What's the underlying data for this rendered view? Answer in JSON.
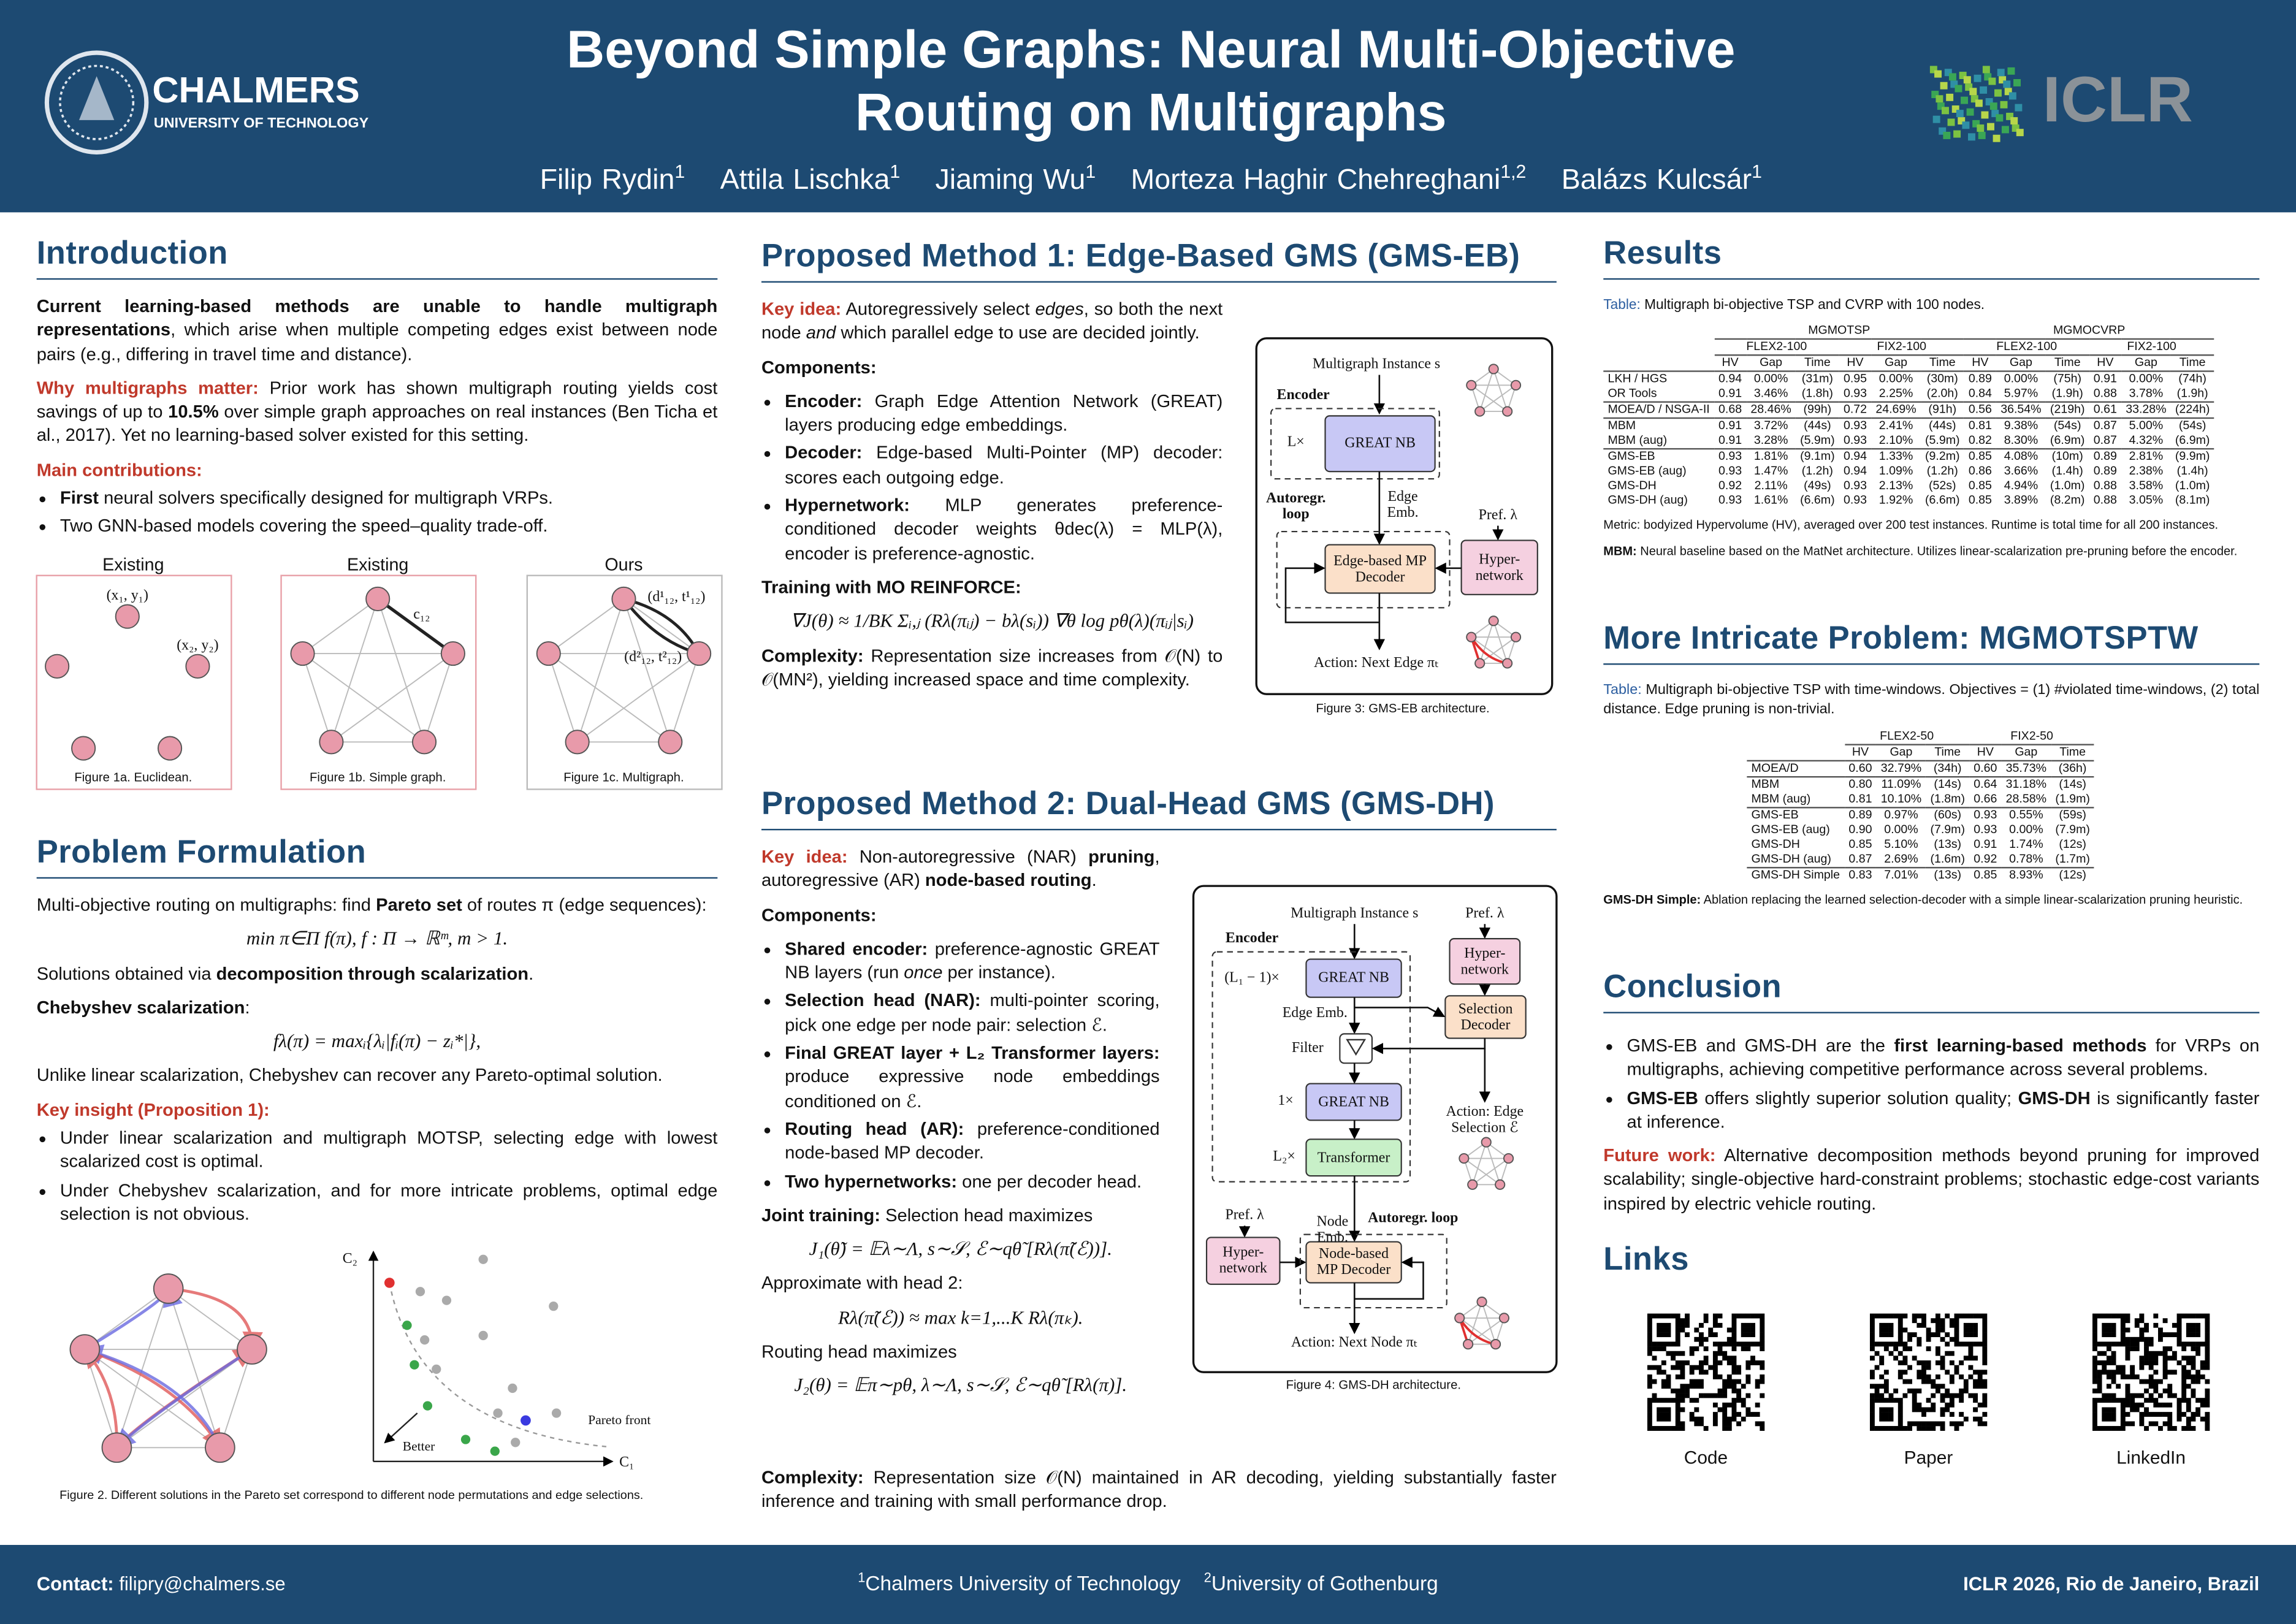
{
  "header": {
    "title_lines": [
      "Beyond Simple Graphs: Neural Multi-Objective",
      "Routing on Multigraphs"
    ],
    "authors": [
      {
        "name": "Filip Rydin",
        "aff": "1"
      },
      {
        "name": "Attila Lischka",
        "aff": "1"
      },
      {
        "name": "Jiaming Wu",
        "aff": "1"
      },
      {
        "name": "Morteza Haghir Chehreghani",
        "aff": "1,2"
      },
      {
        "name": "Balázs Kulcsár",
        "aff": "1"
      }
    ],
    "logo_left": "CHALMERS",
    "logo_left_sub": "UNIVERSITY OF TECHNOLOGY",
    "logo_right": "ICLR"
  },
  "intro": {
    "title": "Introduction",
    "blocks": [
      {
        "p": [
          {
            "b": "Current learning-based methods are unable to handle multigraph representations"
          },
          {
            "t": ", which arise when multiple competing edges exist between node pairs (e.g., differing in travel time and distance)."
          }
        ]
      },
      {
        "p": [
          {
            "r": "Why multigraphs matter:"
          },
          {
            "t": " Prior work has shown multigraph routing yields cost savings of up to "
          },
          {
            "b": "10.5%"
          },
          {
            "t": " over simple graph approaches on real instances (Ben Ticha et al., 2017). Yet no learning-based solver existed for this setting."
          }
        ]
      },
      {
        "h": [
          {
            "r": "Main contributions:"
          }
        ]
      },
      {
        "ul": [
          [
            {
              "b": "First"
            },
            {
              "t": " neural solvers specifically designed for multigraph VRPs."
            }
          ],
          [
            {
              "t": "Two GNN-based models covering the speed–quality trade-off."
            }
          ]
        ]
      }
    ],
    "figure1": [
      {
        "title": "Existing",
        "caption": "Figure 1a. Euclidean.",
        "labels": [
          "(x₁, y₁)",
          "(x₂, y₂)"
        ]
      },
      {
        "title": "Existing",
        "caption": "Figure 1b. Simple graph.",
        "labels": [
          "c₁₂"
        ]
      },
      {
        "title": "Ours",
        "caption": "Figure 1c. Multigraph.",
        "labels": [
          "(d¹₁₂, t¹₁₂)",
          "(d²₁₂, t²₁₂)"
        ]
      }
    ]
  },
  "problem": {
    "title": "Problem Formulation",
    "blocks": [
      {
        "p": [
          {
            "t": "Multi-objective routing on multigraphs: find "
          },
          {
            "b": "Pareto set"
          },
          {
            "t": " of routes π (edge sequences):"
          }
        ]
      },
      {
        "eq": "min π∈Π f(π),    f : Π → ℝᵐ,  m > 1."
      },
      {
        "p": [
          {
            "t": "Solutions obtained via "
          },
          {
            "b": "decomposition through scalarization"
          },
          {
            "t": "."
          }
        ]
      },
      {
        "p": [
          {
            "b": "Chebyshev scalarization"
          },
          {
            "t": ":"
          }
        ]
      },
      {
        "eq": "fλ(π) = maxᵢ{λᵢ|fᵢ(π) − zᵢ*|},"
      },
      {
        "p": [
          {
            "t": "Unlike linear scalarization, Chebyshev can recover any Pareto-optimal solution."
          }
        ]
      },
      {
        "h": [
          {
            "r": "Key insight (Proposition 1):"
          }
        ]
      },
      {
        "ul": [
          [
            {
              "t": "Under linear scalarization and multigraph MOTSP, selecting edge with lowest scalarized cost is optimal."
            }
          ],
          [
            {
              "t": "Under Chebyshev scalarization, and for more intricate problems, optimal edge selection is not obvious."
            }
          ]
        ]
      }
    ],
    "figure2": {
      "caption": "Figure 2. Different solutions in the Pareto set correspond to different node permutations and edge selections.",
      "y_label": "C₂",
      "x_label": "C₁",
      "front_label": "Pareto front",
      "arrow_label": "Better"
    }
  },
  "method1": {
    "title": "Proposed Method 1: Edge-Based GMS (GMS-EB)",
    "blocks": [
      {
        "p": [
          {
            "r": "Key idea:"
          },
          {
            "t": " Autoregressively select "
          },
          {
            "i": "edges"
          },
          {
            "t": ", so both the next node "
          },
          {
            "i": "and"
          },
          {
            "t": " which parallel edge to use are decided jointly."
          }
        ]
      },
      {
        "p": [
          {
            "b": "Components:"
          }
        ]
      },
      {
        "ul": [
          [
            {
              "b": "Encoder:"
            },
            {
              "t": " Graph Edge Attention Network (GREAT) layers producing edge embeddings."
            }
          ],
          [
            {
              "b": "Decoder:"
            },
            {
              "t": " Edge-based Multi-Pointer (MP) decoder: scores each outgoing edge."
            }
          ],
          [
            {
              "b": "Hypernetwork:"
            },
            {
              "t": " MLP generates preference-conditioned decoder weights θdec(λ) = MLP(λ), encoder is preference-agnostic."
            }
          ]
        ]
      },
      {
        "p": [
          {
            "b": "Training with MO REINFORCE:"
          }
        ]
      },
      {
        "eq": "∇J(θ) ≈ 1/BK Σᵢ,ⱼ (Rλ(πᵢⱼ) − bλ(sᵢ)) ∇θ log pθ(λ)(πᵢⱼ|sᵢ)"
      },
      {
        "p": [
          {
            "b": "Complexity:"
          },
          {
            "t": " Representation size increases from 𝒪(N) to 𝒪(MN²), yielding increased space and time complexity."
          }
        ]
      }
    ],
    "figure3": {
      "instance": "Multigraph Instance s",
      "encoder": "Encoder",
      "repeat": "L×",
      "great": "GREAT NB",
      "loop": "Autoregr. loop",
      "emb": "Edge Emb.",
      "pref": "Pref. λ",
      "decoder": "Edge-based MP Decoder",
      "hyper": "Hyper-network",
      "action": "Action: Next Edge πₜ",
      "caption": "Figure 3: GMS-EB architecture."
    }
  },
  "method2": {
    "title": "Proposed Method 2: Dual-Head GMS (GMS-DH)",
    "blocks": [
      {
        "p": [
          {
            "r": "Key idea:"
          },
          {
            "t": " Non-autoregressive (NAR) "
          },
          {
            "b": "pruning"
          },
          {
            "t": ", autoregressive (AR) "
          },
          {
            "b": "node-based routing"
          },
          {
            "t": "."
          }
        ]
      },
      {
        "p": [
          {
            "b": "Components:"
          }
        ]
      },
      {
        "ul": [
          [
            {
              "b": "Shared encoder:"
            },
            {
              "t": " preference-agnostic GREAT NB layers (run "
            },
            {
              "i": "once"
            },
            {
              "t": " per instance)."
            }
          ],
          [
            {
              "b": "Selection head (NAR):"
            },
            {
              "t": " multi-pointer scoring, pick one edge per node pair: selection ℰ."
            }
          ],
          [
            {
              "b": "Final GREAT layer + L₂ Transformer layers:"
            },
            {
              "t": " produce expressive node embeddings conditioned on ℰ."
            }
          ],
          [
            {
              "b": "Routing head (AR):"
            },
            {
              "t": " preference-conditioned node-based MP decoder."
            }
          ],
          [
            {
              "b": "Two hypernetworks:"
            },
            {
              "t": " one per decoder head."
            }
          ]
        ]
      },
      {
        "p": [
          {
            "b": "Joint training:"
          },
          {
            "t": " Selection head maximizes"
          }
        ]
      },
      {
        "eq": "J₁(θ̃) = 𝔼λ∼Λ, s∼𝒮, ℰ∼qθ̃ [Rλ(π̃(ℰ))]."
      },
      {
        "p": [
          {
            "t": "Approximate with head 2:"
          }
        ]
      },
      {
        "eq": "Rλ(π̃(ℰ)) ≈ max k=1,...K Rλ(πₖ)."
      },
      {
        "p": [
          {
            "t": "Routing head maximizes"
          }
        ]
      },
      {
        "eq": "J₂(θ) = 𝔼π∼pθ, λ∼Λ, s∼𝒮, ℰ∼qθ̃ [Rλ(π)]."
      }
    ],
    "complexity": [
      {
        "b": "Complexity:"
      },
      {
        "t": " Representation size 𝒪(N) maintained in AR decoding, yielding substantially faster inference and training with small performance drop."
      }
    ],
    "figure4": {
      "instance": "Multigraph Instance s",
      "pref": "Pref. λ",
      "encoder": "Encoder",
      "repeat1": "(L₁ − 1)×",
      "great1": "GREAT NB",
      "hyper1": "Hyper-network",
      "edge_emb": "Edge Emb.",
      "sel_dec": "Selection Decoder",
      "filter": "Filter",
      "repeat2": "1×",
      "great2": "GREAT NB",
      "edge_action": "Action: Edge Selection ℰ",
      "repeat3": "L₂×",
      "transformer": "Transformer",
      "pref2": "Pref. λ",
      "node_emb": "Node Emb.",
      "loop": "Autoregr. loop",
      "hyper2": "Hyper-network",
      "node_dec": "Node-based MP Decoder",
      "node_action": "Action: Next Node πₜ",
      "caption": "Figure 4: GMS-DH architecture."
    }
  },
  "results": {
    "title": "Results",
    "caption": [
      {
        "c": "Table:"
      },
      {
        "t": " Multigraph bi-objective TSP and CVRP with 100 nodes."
      }
    ],
    "table": {
      "groups": [
        "MGMOTSP",
        "MGMOCVRP"
      ],
      "subgroups": [
        "FLEX2-100",
        "FIX2-100",
        "FLEX2-100",
        "FIX2-100"
      ],
      "cols": [
        "HV",
        "Gap",
        "Time"
      ],
      "row_groups": [
        [
          [
            "LKH / HGS",
            "0.94",
            "0.00%",
            "(31m)",
            "0.95",
            "0.00%",
            "(30m)",
            "0.89",
            "0.00%",
            "(75h)",
            "0.91",
            "0.00%",
            "(74h)"
          ],
          [
            "OR Tools",
            "0.91",
            "3.46%",
            "(1.8h)",
            "0.93",
            "2.25%",
            "(2.0h)",
            "0.84",
            "5.97%",
            "(1.9h)",
            "0.88",
            "3.78%",
            "(1.9h)"
          ]
        ],
        [
          [
            "MOEA/D / NSGA-II",
            "0.68",
            "28.46%",
            "(99h)",
            "0.72",
            "24.69%",
            "(91h)",
            "0.56",
            "36.54%",
            "(219h)",
            "0.61",
            "33.28%",
            "(224h)"
          ]
        ],
        [
          [
            "MBM",
            "0.91",
            "3.72%",
            "(44s)",
            "0.93",
            "2.41%",
            "(44s)",
            "0.81",
            "9.38%",
            "(54s)",
            "0.87",
            "5.00%",
            "(54s)"
          ],
          [
            "MBM (aug)",
            "0.91",
            "3.28%",
            "(5.9m)",
            "0.93",
            "2.10%",
            "(5.9m)",
            "0.82",
            "8.30%",
            "(6.9m)",
            "0.87",
            "4.32%",
            "(6.9m)"
          ]
        ],
        [
          [
            "GMS-EB",
            "0.93",
            "1.81%",
            "(9.1m)",
            "0.94",
            "1.33%",
            "(9.2m)",
            "0.85",
            "4.08%",
            "(10m)",
            "0.89",
            "2.81%",
            "(9.9m)"
          ],
          [
            "GMS-EB (aug)",
            "0.93",
            "1.47%",
            "(1.2h)",
            "0.94",
            "1.09%",
            "(1.2h)",
            "0.86",
            "3.66%",
            "(1.4h)",
            "0.89",
            "2.38%",
            "(1.4h)"
          ],
          [
            "GMS-DH",
            "0.92",
            "2.11%",
            "(49s)",
            "0.93",
            "2.13%",
            "(52s)",
            "0.85",
            "4.94%",
            "(1.0m)",
            "0.88",
            "3.58%",
            "(1.0m)"
          ],
          [
            "GMS-DH (aug)",
            "0.93",
            "1.61%",
            "(6.6m)",
            "0.93",
            "1.92%",
            "(6.6m)",
            "0.85",
            "3.89%",
            "(8.2m)",
            "0.88",
            "3.05%",
            "(8.1m)"
          ]
        ]
      ]
    },
    "notes": [
      {
        "p": [
          {
            "t": "Metric: bodyized Hypervolume (HV), averaged over 200 test instances. Runtime is total time for all 200 instances."
          }
        ]
      },
      {
        "p": [
          {
            "b": "MBM:"
          },
          {
            "t": " Neural baseline based on the MatNet architecture. Utilizes linear-scalarization pre-pruning before the encoder."
          }
        ]
      }
    ]
  },
  "intricate": {
    "title": "More Intricate Problem: MGMOTSPTW",
    "caption": [
      {
        "c": "Table:"
      },
      {
        "t": " Multigraph bi-objective TSP with time-windows. Objectives = (1) #violated time-windows, (2) total distance. Edge pruning is non-trivial."
      }
    ],
    "table": {
      "subgroups": [
        "FLEX2-50",
        "FIX2-50"
      ],
      "cols": [
        "HV",
        "Gap",
        "Time"
      ],
      "row_groups": [
        [
          [
            "MOEA/D",
            "0.60",
            "32.79%",
            "(34h)",
            "0.60",
            "35.73%",
            "(36h)"
          ]
        ],
        [
          [
            "MBM",
            "0.80",
            "11.09%",
            "(14s)",
            "0.64",
            "31.18%",
            "(14s)"
          ],
          [
            "MBM (aug)",
            "0.81",
            "10.10%",
            "(1.8m)",
            "0.66",
            "28.58%",
            "(1.9m)"
          ]
        ],
        [
          [
            "GMS-EB",
            "0.89",
            "0.97%",
            "(60s)",
            "0.93",
            "0.55%",
            "(59s)"
          ],
          [
            "GMS-EB (aug)",
            "0.90",
            "0.00%",
            "(7.9m)",
            "0.93",
            "0.00%",
            "(7.9m)"
          ],
          [
            "GMS-DH",
            "0.85",
            "5.10%",
            "(13s)",
            "0.91",
            "1.74%",
            "(12s)"
          ],
          [
            "GMS-DH (aug)",
            "0.87",
            "2.69%",
            "(1.6m)",
            "0.92",
            "0.78%",
            "(1.7m)"
          ]
        ],
        [
          [
            "GMS-DH Simple",
            "0.83",
            "7.01%",
            "(13s)",
            "0.85",
            "8.93%",
            "(12s)"
          ]
        ]
      ]
    },
    "notes": [
      {
        "p": [
          {
            "b": "GMS-DH Simple:"
          },
          {
            "t": " Ablation replacing the learned selection-decoder with a simple linear-scalarization pruning heuristic."
          }
        ]
      }
    ]
  },
  "conclusion": {
    "title": "Conclusion",
    "blocks": [
      {
        "ul": [
          [
            {
              "t": "GMS-EB and GMS-DH are the "
            },
            {
              "b": "first learning-based methods"
            },
            {
              "t": " for VRPs on multigraphs, achieving competitive performance across several problems."
            }
          ],
          [
            {
              "b": "GMS-EB"
            },
            {
              "t": " offers slightly superior solution quality; "
            },
            {
              "b": "GMS-DH"
            },
            {
              "t": " is significantly faster at inference."
            }
          ]
        ]
      },
      {
        "p": [
          {
            "r": "Future work:"
          },
          {
            "t": " Alternative decomposition methods beyond pruning for improved scalability; single-objective hard-constraint problems; stochastic edge-cost variants inspired by electric vehicle routing."
          }
        ]
      }
    ]
  },
  "links": {
    "title": "Links",
    "items": [
      "Code",
      "Paper",
      "LinkedIn"
    ]
  },
  "footer": {
    "contact_label": "Contact:",
    "contact": "filipry@chalmers.se",
    "affiliations": [
      {
        "sup": "1",
        "name": "Chalmers University of Technology"
      },
      {
        "sup": "2",
        "name": "University of Gothenburg"
      }
    ],
    "venue": "ICLR 2026, Rio de Janeiro, Brazil"
  }
}
